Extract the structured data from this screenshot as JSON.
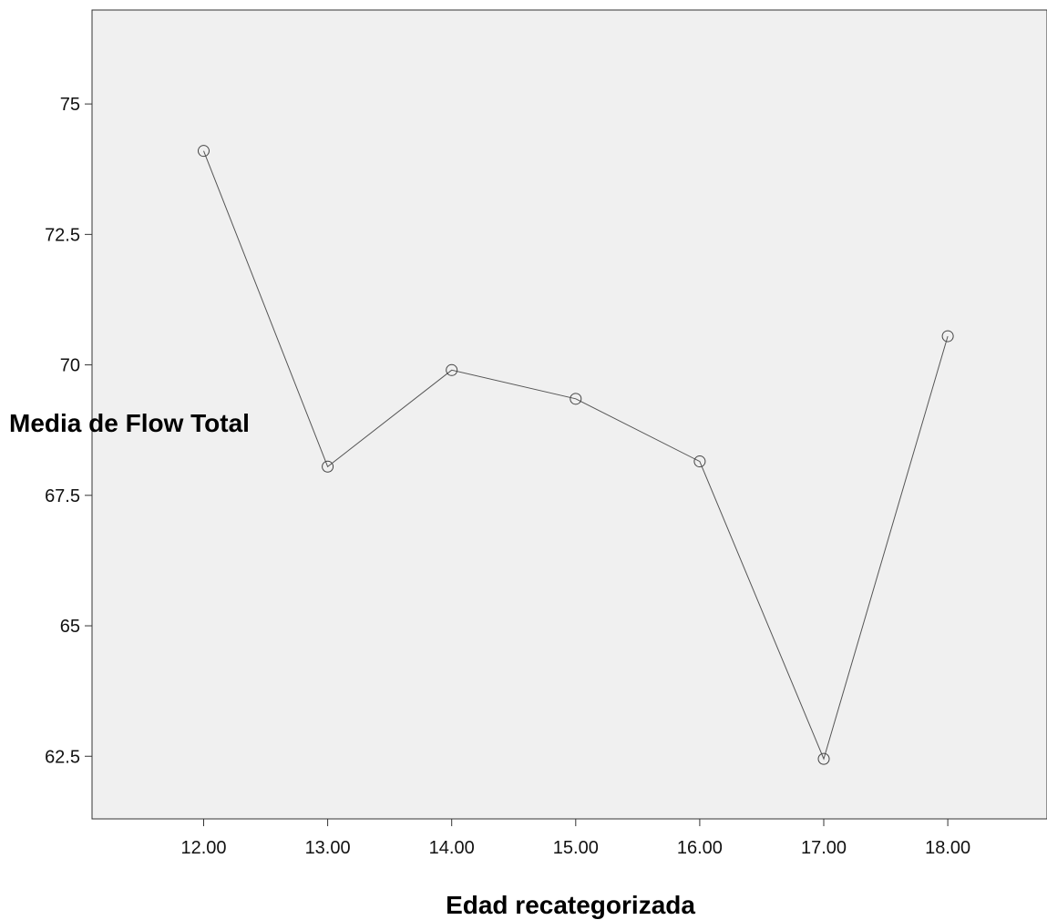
{
  "chart_data": {
    "type": "line",
    "x": [
      "12.00",
      "13.00",
      "14.00",
      "15.00",
      "16.00",
      "17.00",
      "18.00"
    ],
    "series": [
      {
        "values": [
          74.1,
          68.05,
          69.9,
          69.35,
          68.15,
          62.45,
          70.55
        ]
      }
    ],
    "title": "",
    "xlabel": "Edad recategorizada",
    "ylabel": "Media de Flow Total",
    "ylim": [
      61.3,
      76.8
    ],
    "xlim": [
      11.1,
      18.8
    ],
    "yticks": [
      "62.5",
      "65",
      "67.5",
      "70",
      "72.5",
      "75"
    ],
    "marker": "open-circle",
    "grid": false,
    "legend": "none",
    "colors": {
      "plot_background": "#f0f0f0",
      "line": "#555555",
      "marker": "#444444",
      "axis": "#333333"
    }
  }
}
